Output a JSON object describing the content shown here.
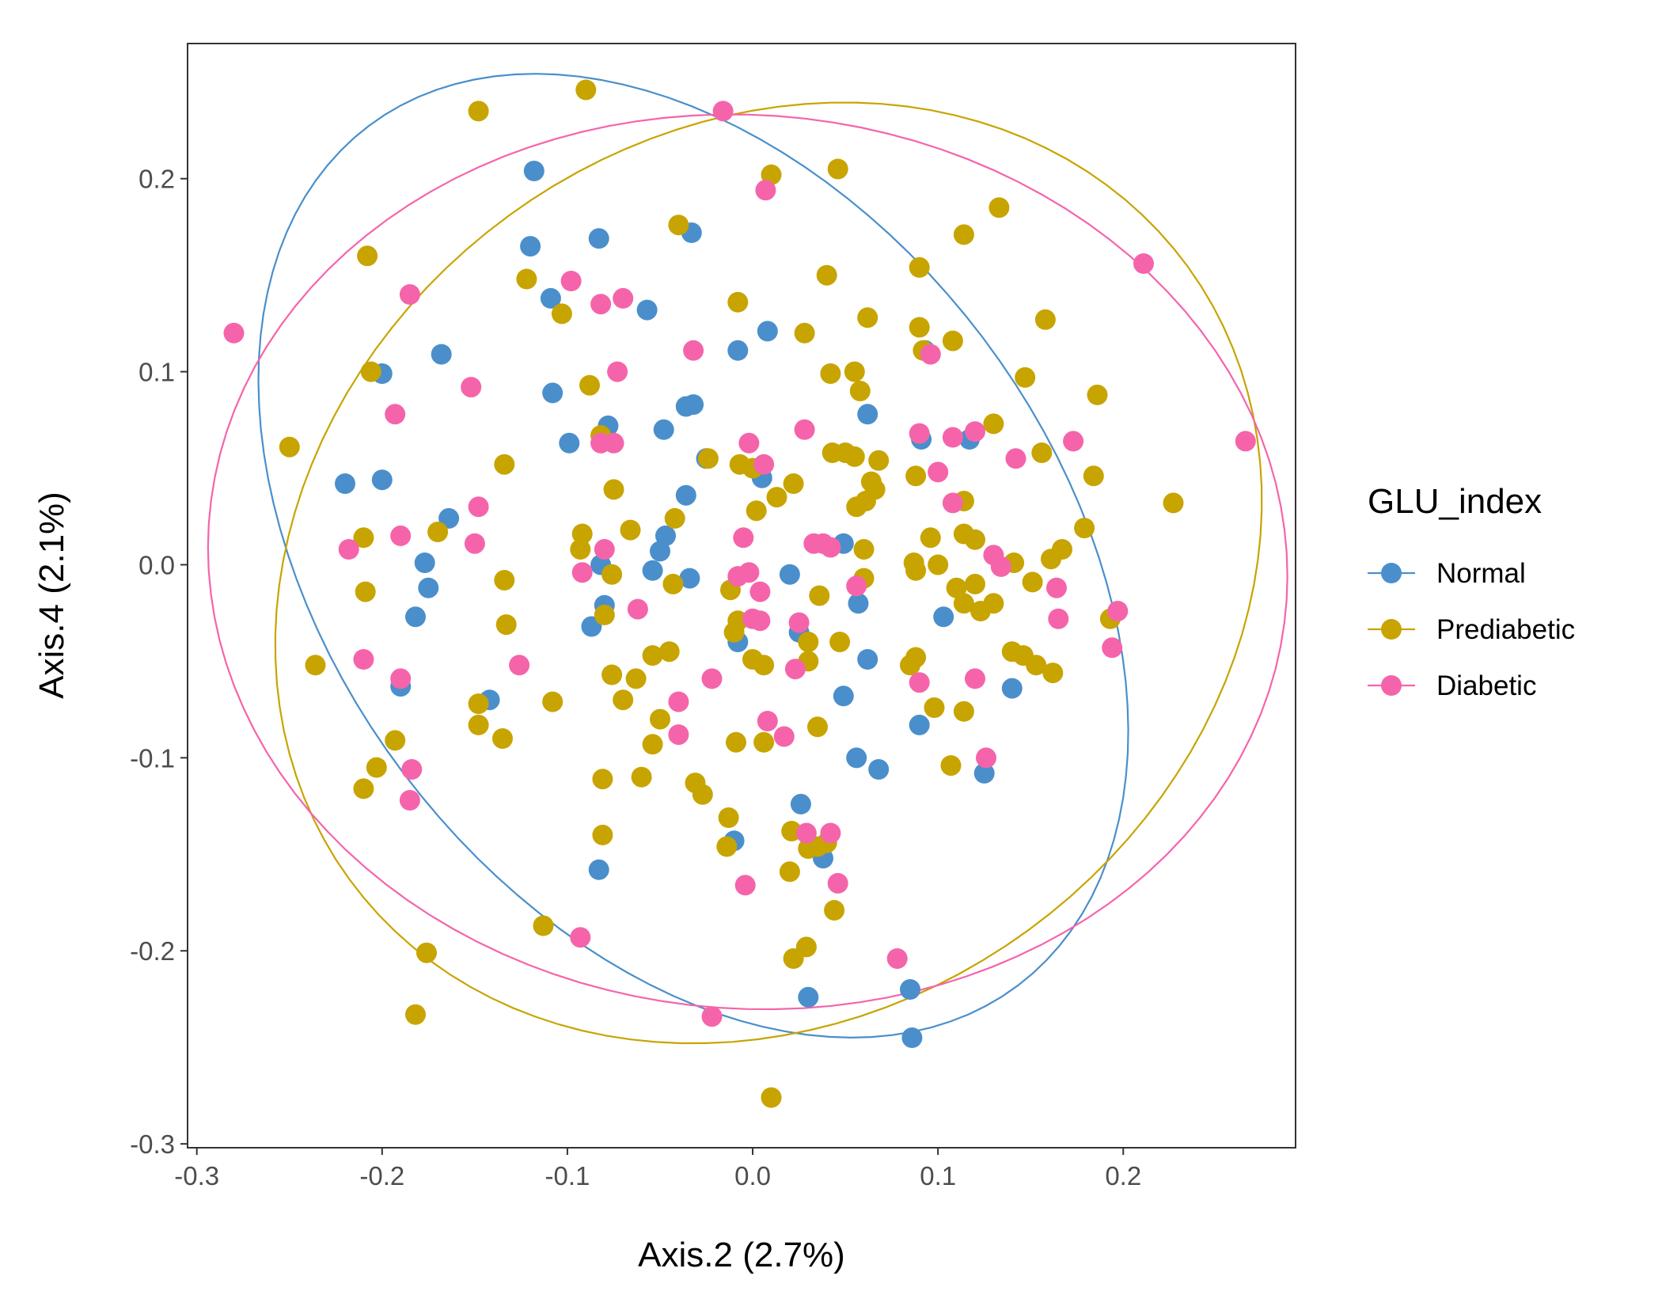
{
  "chart_data": {
    "type": "scatter",
    "title": "",
    "xlabel": "Axis.2 (2.7%)",
    "ylabel": "Axis.4 (2.1%)",
    "xlim": [
      -0.305,
      0.293
    ],
    "ylim": [
      -0.302,
      0.27
    ],
    "x_ticks": [
      -0.3,
      -0.2,
      -0.1,
      0.0,
      0.1,
      0.2
    ],
    "y_ticks": [
      -0.3,
      -0.2,
      -0.1,
      0.0,
      0.1,
      0.2
    ],
    "x_tick_labels": [
      "-0.3",
      "-0.2",
      "-0.1",
      "0.0",
      "0.1",
      "0.2"
    ],
    "y_tick_labels": [
      "-0.3",
      "-0.2",
      "-0.1",
      "0.0",
      "0.1",
      "0.2"
    ],
    "grid": false,
    "legend": {
      "title": "GLU_index",
      "position": "right"
    },
    "ellipses": true,
    "series": [
      {
        "name": "Normal",
        "color": "#4a8fcb",
        "points": [
          [
            -0.118,
            0.204
          ],
          [
            -0.12,
            0.165
          ],
          [
            -0.083,
            0.169
          ],
          [
            -0.033,
            0.172
          ],
          [
            -0.057,
            0.132
          ],
          [
            -0.109,
            0.138
          ],
          [
            -0.2,
            0.099
          ],
          [
            -0.168,
            0.109
          ],
          [
            -0.108,
            0.089
          ],
          [
            -0.099,
            0.063
          ],
          [
            -0.078,
            0.072
          ],
          [
            -0.036,
            0.082
          ],
          [
            -0.032,
            0.083
          ],
          [
            -0.048,
            0.07
          ],
          [
            -0.025,
            0.055
          ],
          [
            0.008,
            0.121
          ],
          [
            -0.008,
            0.111
          ],
          [
            0.062,
            0.078
          ],
          [
            0.005,
            0.045
          ],
          [
            -0.036,
            0.036
          ],
          [
            -0.22,
            0.042
          ],
          [
            -0.2,
            0.044
          ],
          [
            -0.164,
            0.024
          ],
          [
            -0.177,
            0.001
          ],
          [
            -0.175,
            -0.012
          ],
          [
            -0.182,
            -0.027
          ],
          [
            -0.05,
            0.007
          ],
          [
            -0.054,
            -0.003
          ],
          [
            -0.047,
            0.015
          ],
          [
            -0.034,
            -0.007
          ],
          [
            -0.082,
            0.0
          ],
          [
            0.02,
            -0.005
          ],
          [
            0.049,
            0.011
          ],
          [
            0.057,
            -0.02
          ],
          [
            0.062,
            -0.049
          ],
          [
            -0.087,
            -0.032
          ],
          [
            -0.08,
            -0.021
          ],
          [
            -0.008,
            -0.04
          ],
          [
            0.025,
            -0.035
          ],
          [
            0.049,
            -0.068
          ],
          [
            0.091,
            0.065
          ],
          [
            0.093,
            0.111
          ],
          [
            0.117,
            0.065
          ],
          [
            0.103,
            -0.027
          ],
          [
            0.14,
            -0.064
          ],
          [
            -0.19,
            -0.063
          ],
          [
            -0.142,
            -0.07
          ],
          [
            0.056,
            -0.1
          ],
          [
            0.068,
            -0.106
          ],
          [
            0.125,
            -0.108
          ],
          [
            0.09,
            -0.083
          ],
          [
            0.026,
            -0.124
          ],
          [
            -0.01,
            -0.143
          ],
          [
            -0.083,
            -0.158
          ],
          [
            0.038,
            -0.152
          ],
          [
            0.03,
            -0.224
          ],
          [
            0.085,
            -0.22
          ],
          [
            0.086,
            -0.245
          ]
        ]
      },
      {
        "name": "Prediabetic",
        "color": "#c8a400",
        "points": [
          [
            -0.148,
            0.235
          ],
          [
            -0.09,
            0.246
          ],
          [
            0.01,
            0.202
          ],
          [
            0.046,
            0.205
          ],
          [
            -0.04,
            0.176
          ],
          [
            0.133,
            0.185
          ],
          [
            0.114,
            0.171
          ],
          [
            0.09,
            0.154
          ],
          [
            -0.208,
            0.16
          ],
          [
            -0.122,
            0.148
          ],
          [
            -0.103,
            0.13
          ],
          [
            -0.008,
            0.136
          ],
          [
            0.04,
            0.15
          ],
          [
            0.062,
            0.128
          ],
          [
            0.158,
            0.127
          ],
          [
            0.028,
            0.12
          ],
          [
            0.09,
            0.123
          ],
          [
            0.108,
            0.116
          ],
          [
            0.092,
            0.111
          ],
          [
            0.042,
            0.099
          ],
          [
            0.055,
            0.1
          ],
          [
            0.058,
            0.09
          ],
          [
            0.147,
            0.097
          ],
          [
            0.186,
            0.088
          ],
          [
            -0.206,
            0.1
          ],
          [
            -0.088,
            0.093
          ],
          [
            -0.082,
            0.067
          ],
          [
            0.13,
            0.073
          ],
          [
            0.043,
            0.058
          ],
          [
            0.05,
            0.058
          ],
          [
            0.055,
            0.056
          ],
          [
            0.068,
            0.054
          ],
          [
            0.156,
            0.058
          ],
          [
            -0.25,
            0.061
          ],
          [
            -0.134,
            0.052
          ],
          [
            -0.024,
            0.055
          ],
          [
            -0.007,
            0.052
          ],
          [
            0.0,
            0.05
          ],
          [
            0.022,
            0.042
          ],
          [
            0.064,
            0.043
          ],
          [
            0.066,
            0.039
          ],
          [
            0.088,
            0.046
          ],
          [
            0.184,
            0.046
          ],
          [
            0.227,
            0.032
          ],
          [
            -0.075,
            0.039
          ],
          [
            0.013,
            0.035
          ],
          [
            0.056,
            0.03
          ],
          [
            0.061,
            0.033
          ],
          [
            0.114,
            0.033
          ],
          [
            0.002,
            0.028
          ],
          [
            -0.042,
            0.024
          ],
          [
            -0.21,
            0.014
          ],
          [
            -0.17,
            0.017
          ],
          [
            -0.092,
            0.016
          ],
          [
            -0.066,
            0.018
          ],
          [
            -0.093,
            0.008
          ],
          [
            -0.076,
            -0.005
          ],
          [
            0.06,
            0.008
          ],
          [
            0.096,
            0.014
          ],
          [
            0.114,
            0.016
          ],
          [
            0.12,
            0.013
          ],
          [
            0.141,
            0.001
          ],
          [
            0.161,
            0.003
          ],
          [
            0.167,
            0.008
          ],
          [
            0.179,
            0.019
          ],
          [
            -0.134,
            -0.008
          ],
          [
            0.087,
            0.001
          ],
          [
            0.1,
            0.0
          ],
          [
            0.088,
            -0.003
          ],
          [
            -0.209,
            -0.014
          ],
          [
            -0.043,
            -0.01
          ],
          [
            -0.012,
            -0.013
          ],
          [
            0.036,
            -0.016
          ],
          [
            0.06,
            -0.007
          ],
          [
            0.11,
            -0.012
          ],
          [
            0.114,
            -0.02
          ],
          [
            0.12,
            -0.01
          ],
          [
            0.123,
            -0.024
          ],
          [
            0.13,
            -0.02
          ],
          [
            0.151,
            -0.009
          ],
          [
            0.193,
            -0.028
          ],
          [
            -0.133,
            -0.031
          ],
          [
            -0.08,
            -0.026
          ],
          [
            -0.008,
            -0.029
          ],
          [
            -0.01,
            -0.035
          ],
          [
            0.0,
            -0.049
          ],
          [
            0.006,
            -0.052
          ],
          [
            0.03,
            -0.04
          ],
          [
            0.047,
            -0.04
          ],
          [
            0.085,
            -0.052
          ],
          [
            0.088,
            -0.048
          ],
          [
            0.14,
            -0.045
          ],
          [
            0.146,
            -0.047
          ],
          [
            0.153,
            -0.052
          ],
          [
            0.162,
            -0.056
          ],
          [
            -0.236,
            -0.052
          ],
          [
            -0.076,
            -0.057
          ],
          [
            -0.063,
            -0.059
          ],
          [
            -0.054,
            -0.047
          ],
          [
            -0.045,
            -0.045
          ],
          [
            -0.07,
            -0.07
          ],
          [
            -0.05,
            -0.08
          ],
          [
            -0.054,
            -0.093
          ],
          [
            -0.148,
            -0.072
          ],
          [
            -0.148,
            -0.083
          ],
          [
            -0.135,
            -0.09
          ],
          [
            -0.108,
            -0.071
          ],
          [
            -0.009,
            -0.092
          ],
          [
            0.006,
            -0.092
          ],
          [
            0.035,
            -0.084
          ],
          [
            0.098,
            -0.074
          ],
          [
            0.114,
            -0.076
          ],
          [
            0.03,
            -0.05
          ],
          [
            -0.193,
            -0.091
          ],
          [
            -0.203,
            -0.105
          ],
          [
            -0.21,
            -0.116
          ],
          [
            -0.081,
            -0.111
          ],
          [
            -0.06,
            -0.11
          ],
          [
            -0.031,
            -0.113
          ],
          [
            -0.027,
            -0.119
          ],
          [
            0.107,
            -0.104
          ],
          [
            -0.013,
            -0.131
          ],
          [
            -0.081,
            -0.14
          ],
          [
            0.021,
            -0.138
          ],
          [
            -0.014,
            -0.146
          ],
          [
            0.03,
            -0.147
          ],
          [
            0.035,
            -0.146
          ],
          [
            0.04,
            -0.144
          ],
          [
            0.02,
            -0.159
          ],
          [
            0.044,
            -0.179
          ],
          [
            -0.113,
            -0.187
          ],
          [
            -0.176,
            -0.201
          ],
          [
            0.029,
            -0.198
          ],
          [
            0.022,
            -0.204
          ],
          [
            -0.182,
            -0.233
          ],
          [
            0.01,
            -0.276
          ]
        ]
      },
      {
        "name": "Diabetic",
        "color": "#f564ab",
        "points": [
          [
            -0.016,
            0.235
          ],
          [
            0.007,
            0.194
          ],
          [
            -0.28,
            0.12
          ],
          [
            0.211,
            0.156
          ],
          [
            -0.098,
            0.147
          ],
          [
            -0.07,
            0.138
          ],
          [
            -0.082,
            0.135
          ],
          [
            -0.185,
            0.14
          ],
          [
            -0.032,
            0.111
          ],
          [
            -0.073,
            0.1
          ],
          [
            0.096,
            0.109
          ],
          [
            -0.152,
            0.092
          ],
          [
            -0.193,
            0.078
          ],
          [
            0.028,
            0.07
          ],
          [
            -0.082,
            0.063
          ],
          [
            -0.075,
            0.063
          ],
          [
            -0.002,
            0.063
          ],
          [
            0.006,
            0.052
          ],
          [
            0.09,
            0.068
          ],
          [
            0.108,
            0.066
          ],
          [
            0.12,
            0.069
          ],
          [
            0.142,
            0.055
          ],
          [
            0.173,
            0.064
          ],
          [
            0.266,
            0.064
          ],
          [
            0.1,
            0.048
          ],
          [
            -0.148,
            0.03
          ],
          [
            0.108,
            0.032
          ],
          [
            -0.19,
            0.015
          ],
          [
            -0.15,
            0.011
          ],
          [
            -0.218,
            0.008
          ],
          [
            -0.08,
            0.008
          ],
          [
            -0.005,
            0.014
          ],
          [
            0.033,
            0.011
          ],
          [
            0.038,
            0.011
          ],
          [
            0.042,
            0.009
          ],
          [
            0.13,
            0.005
          ],
          [
            0.134,
            -0.001
          ],
          [
            -0.092,
            -0.004
          ],
          [
            -0.008,
            -0.006
          ],
          [
            -0.002,
            -0.004
          ],
          [
            0.004,
            -0.014
          ],
          [
            0.056,
            -0.011
          ],
          [
            0.164,
            -0.012
          ],
          [
            -0.062,
            -0.023
          ],
          [
            0.0,
            -0.028
          ],
          [
            0.004,
            -0.029
          ],
          [
            0.025,
            -0.03
          ],
          [
            0.165,
            -0.028
          ],
          [
            0.197,
            -0.024
          ],
          [
            0.194,
            -0.043
          ],
          [
            -0.21,
            -0.049
          ],
          [
            -0.126,
            -0.052
          ],
          [
            0.023,
            -0.054
          ],
          [
            -0.19,
            -0.059
          ],
          [
            -0.022,
            -0.059
          ],
          [
            0.09,
            -0.061
          ],
          [
            0.12,
            -0.059
          ],
          [
            -0.04,
            -0.071
          ],
          [
            -0.04,
            -0.088
          ],
          [
            0.008,
            -0.081
          ],
          [
            0.017,
            -0.089
          ],
          [
            -0.184,
            -0.106
          ],
          [
            -0.185,
            -0.122
          ],
          [
            0.126,
            -0.1
          ],
          [
            0.029,
            -0.139
          ],
          [
            0.042,
            -0.139
          ],
          [
            -0.004,
            -0.166
          ],
          [
            0.046,
            -0.165
          ],
          [
            -0.093,
            -0.193
          ],
          [
            0.078,
            -0.204
          ],
          [
            -0.022,
            -0.234
          ]
        ]
      }
    ]
  }
}
